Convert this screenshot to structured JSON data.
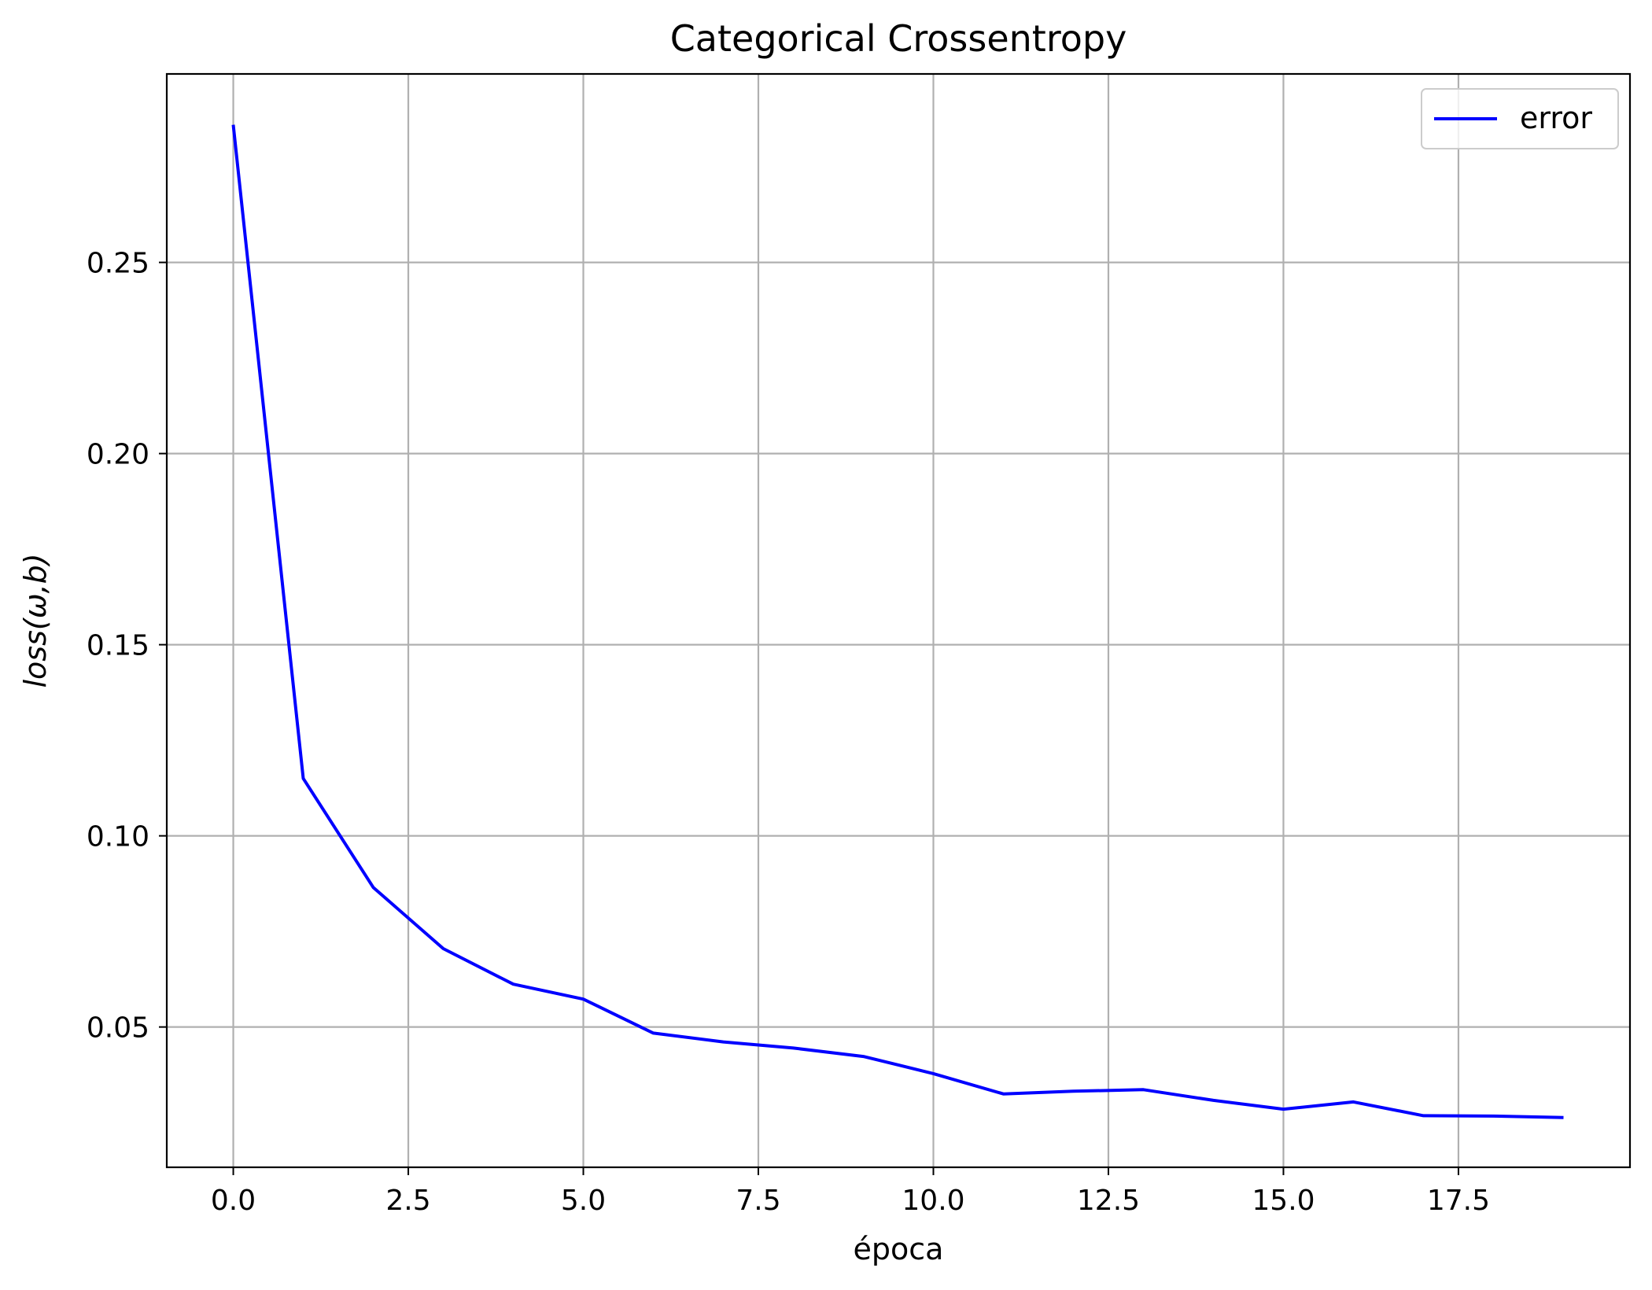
{
  "chart_data": {
    "type": "line",
    "title": "Categorical Crossentropy",
    "xlabel": "época",
    "ylabel": "loss(ω,b)",
    "x": [
      0,
      1,
      2,
      3,
      4,
      5,
      6,
      7,
      8,
      9,
      10,
      11,
      12,
      13,
      14,
      15,
      16,
      17,
      18,
      19
    ],
    "series": [
      {
        "name": "error",
        "color": "#0000ff",
        "values": [
          0.286,
          0.115,
          0.0865,
          0.0705,
          0.0612,
          0.0573,
          0.0484,
          0.0461,
          0.0445,
          0.0423,
          0.0378,
          0.0325,
          0.0332,
          0.0336,
          0.0308,
          0.0285,
          0.0304,
          0.0268,
          0.0267,
          0.0263
        ]
      }
    ],
    "xlim": [
      -0.95,
      19.95
    ],
    "ylim": [
      0.0133,
      0.2993
    ],
    "xticks": [
      0,
      2.5,
      5,
      7.5,
      10,
      12.5,
      15,
      17.5
    ],
    "xtick_labels": [
      "0.0",
      "2.5",
      "5.0",
      "7.5",
      "10.0",
      "12.5",
      "15.0",
      "17.5"
    ],
    "yticks": [
      0.05,
      0.1,
      0.15,
      0.2,
      0.25
    ],
    "ytick_labels": [
      "0.05",
      "0.10",
      "0.15",
      "0.20",
      "0.25"
    ],
    "grid": true,
    "legend_position": "top-right"
  }
}
